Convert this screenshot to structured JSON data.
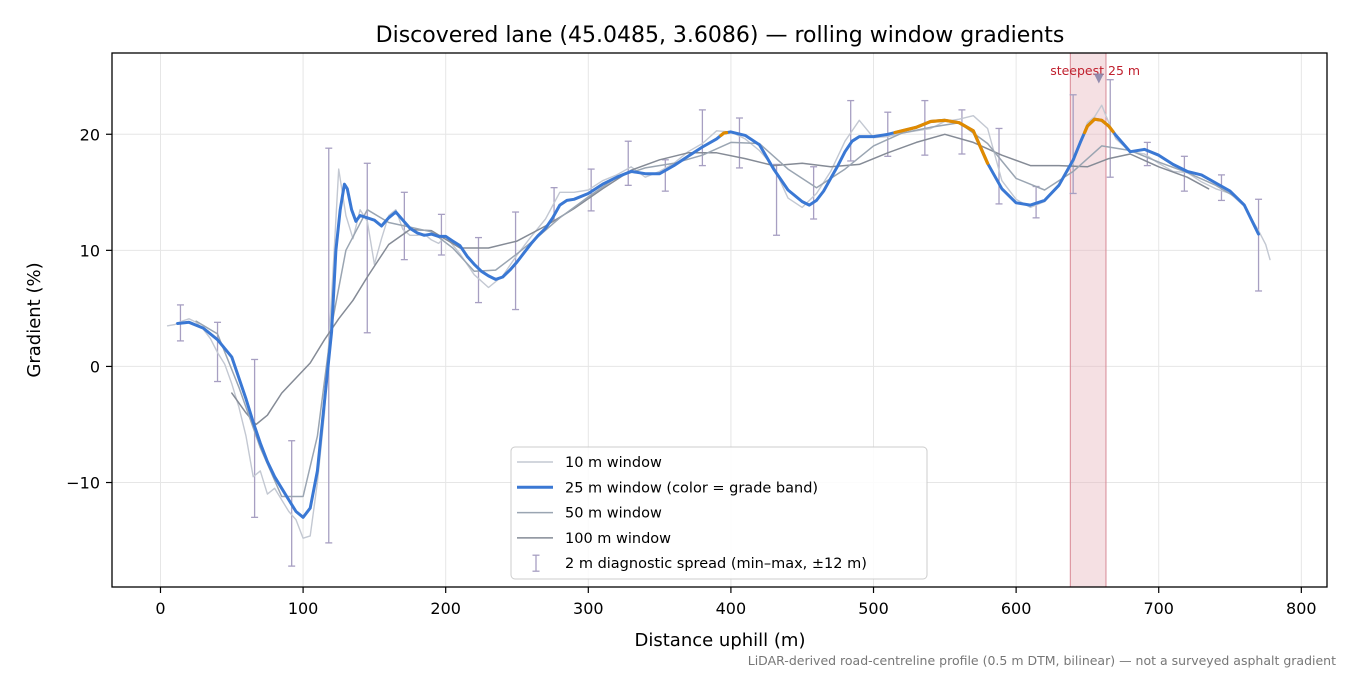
{
  "chart_data": {
    "type": "line",
    "title": "Discovered lane (45.0485, 3.6086) — rolling window gradients",
    "xlabel": "Distance uphill (m)",
    "ylabel": "Gradient (%)",
    "xlim": [
      -34,
      818
    ],
    "ylim": [
      -19,
      27
    ],
    "xticks": [
      0,
      100,
      200,
      300,
      400,
      500,
      600,
      700,
      800
    ],
    "yticks": [
      -10,
      0,
      10,
      20
    ],
    "xtick_labels": [
      "0",
      "100",
      "200",
      "300",
      "400",
      "500",
      "600",
      "700",
      "800"
    ],
    "ytick_labels": [
      "−10",
      "0",
      "10",
      "20"
    ],
    "grid": true,
    "legend_position": "lower center",
    "footnote": "LiDAR-derived road-centreline profile (0.5 m DTM, bilinear) — not a surveyed asphalt gradient",
    "colors": {
      "w10": "#c3c8d2",
      "w25": "#3a78d4",
      "w25_steep": "#e08a00",
      "w50": "#9aa5b2",
      "w100": "#858b96",
      "errorbar": "#a79fc2",
      "highlight": "#e7b2ba",
      "highlight_edge": "#d88a96",
      "annotation": "#c0202e",
      "marker": "#8a84a8"
    },
    "series": [
      {
        "name": "10 m window",
        "x": [
          5,
          10,
          15,
          20,
          25,
          30,
          35,
          40,
          45,
          50,
          55,
          60,
          65,
          70,
          75,
          80,
          85,
          90,
          95,
          100,
          105,
          110,
          115,
          120,
          125,
          130,
          135,
          140,
          145,
          150,
          155,
          160,
          165,
          170,
          175,
          180,
          185,
          190,
          195,
          200,
          210,
          220,
          230,
          240,
          250,
          260,
          270,
          280,
          290,
          300,
          310,
          320,
          330,
          340,
          350,
          360,
          370,
          380,
          390,
          400,
          410,
          420,
          430,
          440,
          450,
          460,
          470,
          480,
          490,
          500,
          510,
          520,
          530,
          540,
          550,
          560,
          570,
          580,
          590,
          600,
          610,
          620,
          630,
          640,
          650,
          655,
          660,
          665,
          670,
          680,
          690,
          700,
          710,
          720,
          730,
          740,
          750,
          760,
          770,
          775,
          778
        ],
        "values": [
          3.5,
          3.6,
          3.9,
          4.1,
          3.8,
          3.2,
          2.4,
          1.2,
          0.2,
          -1.5,
          -3.5,
          -6,
          -9.5,
          -9,
          -11,
          -10.5,
          -11.5,
          -12.5,
          -13.2,
          -14.8,
          -14.6,
          -10,
          -4,
          6,
          17,
          13,
          11,
          13.5,
          12.5,
          8.8,
          11,
          13,
          13.5,
          11.8,
          11.3,
          11.3,
          11.4,
          10.9,
          10.6,
          11.2,
          9.7,
          7.9,
          6.8,
          7.8,
          9.6,
          11.2,
          12.7,
          15,
          15,
          15.2,
          16,
          16.5,
          17.2,
          16.3,
          16.8,
          17.5,
          18.5,
          19.2,
          20.3,
          20.2,
          19.6,
          18.6,
          17.2,
          14.5,
          13.7,
          14.9,
          16.8,
          19.4,
          21.2,
          19.7,
          19.8,
          20.1,
          20.3,
          20.5,
          21.1,
          21.3,
          21.6,
          20.5,
          16,
          14.4,
          13.7,
          14.2,
          15.6,
          17.5,
          21,
          21.5,
          22.5,
          21,
          19.6,
          18.5,
          18.3,
          17.5,
          16.8,
          16.7,
          15.9,
          15.3,
          14.9,
          13.8,
          11.7,
          10.5,
          9.2
        ]
      },
      {
        "name": "25 m window (color = grade band)",
        "x": [
          12,
          20,
          30,
          40,
          50,
          60,
          65,
          70,
          75,
          80,
          85,
          90,
          95,
          100,
          105,
          110,
          115,
          120,
          123,
          126,
          129,
          131,
          134,
          137,
          140,
          145,
          150,
          155,
          160,
          165,
          170,
          175,
          180,
          185,
          190,
          195,
          200,
          205,
          210,
          215,
          220,
          225,
          230,
          235,
          240,
          245,
          250,
          255,
          260,
          265,
          270,
          275,
          280,
          285,
          290,
          300,
          310,
          320,
          330,
          340,
          350,
          360,
          370,
          380,
          390,
          395,
          400,
          410,
          420,
          430,
          440,
          450,
          455,
          460,
          465,
          470,
          475,
          480,
          485,
          490,
          500,
          510,
          520,
          530,
          540,
          550,
          560,
          570,
          580,
          590,
          600,
          610,
          620,
          630,
          640,
          645,
          650,
          655,
          660,
          665,
          670,
          680,
          690,
          700,
          710,
          720,
          730,
          740,
          750,
          760,
          770
        ],
        "values": [
          3.7,
          3.8,
          3.3,
          2.3,
          0.8,
          -2.8,
          -4.8,
          -6.6,
          -8.2,
          -9.5,
          -10.5,
          -11.5,
          -12.5,
          -13,
          -12.2,
          -9,
          -3,
          3,
          10,
          13.5,
          15.7,
          15.3,
          13.5,
          12.5,
          13,
          12.8,
          12.6,
          12.1,
          12.8,
          13.3,
          12.6,
          11.9,
          11.5,
          11.3,
          11.4,
          11.2,
          11.2,
          10.8,
          10.4,
          9.5,
          8.8,
          8.2,
          7.8,
          7.5,
          7.7,
          8.3,
          9,
          9.8,
          10.6,
          11.3,
          11.9,
          12.8,
          13.9,
          14.3,
          14.4,
          14.9,
          15.7,
          16.3,
          16.8,
          16.6,
          16.6,
          17.3,
          18.1,
          18.9,
          19.6,
          20.1,
          20.2,
          19.9,
          19.1,
          17,
          15.2,
          14.2,
          13.9,
          14.3,
          15.1,
          16.2,
          17.3,
          18.5,
          19.4,
          19.8,
          19.8,
          20,
          20.3,
          20.6,
          21.1,
          21.2,
          21,
          20.3,
          17.5,
          15.3,
          14.1,
          13.9,
          14.3,
          15.6,
          17.8,
          19.3,
          20.7,
          21.3,
          21.2,
          20.7,
          19.9,
          18.5,
          18.7,
          18.2,
          17.4,
          16.8,
          16.5,
          15.8,
          15.1,
          13.9,
          11.4
        ]
      },
      {
        "name": "50 m window",
        "x": [
          25,
          40,
          55,
          70,
          85,
          100,
          110,
          120,
          130,
          145,
          160,
          175,
          190,
          205,
          220,
          235,
          250,
          265,
          280,
          300,
          320,
          340,
          360,
          380,
          400,
          420,
          440,
          460,
          480,
          500,
          520,
          540,
          560,
          580,
          600,
          620,
          640,
          660,
          680,
          700,
          720,
          740,
          755
        ],
        "values": [
          3.9,
          2.8,
          -1.8,
          -7,
          -11.2,
          -11.2,
          -6,
          3.5,
          10,
          13.5,
          12.4,
          12,
          11.6,
          10.2,
          8.2,
          8.3,
          9.7,
          11.2,
          12.8,
          14.6,
          16.3,
          17.1,
          17.5,
          18.2,
          19.3,
          19.2,
          17,
          15.4,
          17,
          19,
          20.1,
          20.6,
          21,
          19.2,
          16.2,
          15.2,
          16.8,
          19,
          18.6,
          17.6,
          16.7,
          15.6,
          14.5
        ]
      },
      {
        "name": "100 m window",
        "x": [
          50,
          60,
          67,
          75,
          85,
          95,
          105,
          115,
          125,
          135,
          145,
          160,
          175,
          190,
          210,
          230,
          250,
          270,
          290,
          310,
          330,
          350,
          370,
          390,
          410,
          430,
          450,
          470,
          490,
          510,
          530,
          550,
          570,
          590,
          610,
          630,
          650,
          665,
          680,
          700,
          720,
          735
        ],
        "values": [
          -2.3,
          -4,
          -5,
          -4.2,
          -2.3,
          -1,
          0.3,
          2.3,
          4.1,
          5.7,
          7.7,
          10.5,
          11.8,
          11.7,
          10.2,
          10.2,
          10.8,
          12.1,
          13.6,
          15.3,
          16.9,
          17.8,
          18.4,
          18.4,
          17.9,
          17.3,
          17.5,
          17.2,
          17.4,
          18.4,
          19.3,
          20,
          19.3,
          18.2,
          17.3,
          17.3,
          17.2,
          17.9,
          18.3,
          17.2,
          16.3,
          15.3
        ]
      }
    ],
    "errorbars": {
      "name": "2 m diagnostic spread (min–max, ±12 m)",
      "x": [
        14,
        40,
        66,
        92,
        118,
        145,
        171,
        197,
        223,
        249,
        276,
        302,
        328,
        354,
        380,
        406,
        432,
        458,
        484,
        510,
        536,
        562,
        588,
        614,
        640,
        666,
        692,
        718,
        744,
        770
      ],
      "low": [
        2.2,
        -1.3,
        -13,
        -17.2,
        -15.2,
        2.9,
        9.2,
        9.6,
        5.5,
        4.9,
        12.6,
        13.4,
        15.6,
        15.1,
        17.3,
        17.1,
        11.3,
        12.7,
        17.7,
        18.1,
        18.2,
        18.3,
        14,
        12.8,
        14.9,
        16.3,
        17.3,
        15.1,
        14.3,
        6.5
      ],
      "high": [
        5.3,
        3.8,
        0.6,
        -6.4,
        18.8,
        17.5,
        15,
        13.1,
        11.1,
        13.3,
        15.4,
        17,
        19.4,
        17.8,
        22.1,
        21.4,
        17.4,
        17.2,
        22.9,
        21.9,
        22.9,
        22.1,
        20.5,
        15.5,
        23.4,
        24.7,
        19.3,
        18.1,
        16.5,
        14.4
      ]
    },
    "steep_segments": [
      [
        393,
        397
      ],
      [
        515,
        580
      ],
      [
        648,
        668
      ]
    ],
    "highlight": {
      "x_start": 638,
      "x_end": 663,
      "label": "steepest 25 m",
      "marker_x": 658,
      "marker_y": 24.8
    },
    "legend": [
      {
        "label": "10 m window",
        "style": "w10"
      },
      {
        "label": "25 m window (color = grade band)",
        "style": "w25"
      },
      {
        "label": "50 m window",
        "style": "w50"
      },
      {
        "label": "100 m window",
        "style": "w100"
      },
      {
        "label": "2 m diagnostic spread (min–max, ±12 m)",
        "style": "errorbar"
      }
    ]
  }
}
